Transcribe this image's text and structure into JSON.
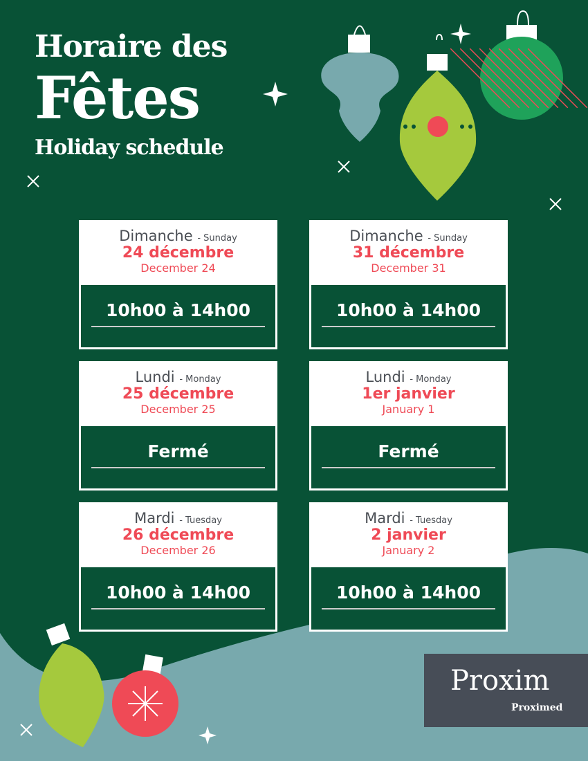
{
  "title": {
    "line1": "Horaire des",
    "line2": "Fêtes",
    "line3": "Holiday schedule"
  },
  "colors": {
    "background": "#085236",
    "accent": "#ef4a56",
    "teal": "#78a9ad",
    "lime": "#a5c93d"
  },
  "cards": [
    {
      "day_fr": "Dimanche",
      "day_en": "- Sunday",
      "date_fr": "24 décembre",
      "date_en": "December 24",
      "hours": "10h00 à 14h00"
    },
    {
      "day_fr": "Dimanche",
      "day_en": "- Sunday",
      "date_fr": "31 décembre",
      "date_en": "December 31",
      "hours": "10h00 à 14h00"
    },
    {
      "day_fr": "Lundi",
      "day_en": "- Monday",
      "date_fr": "25 décembre",
      "date_en": "December 25",
      "hours": "Fermé"
    },
    {
      "day_fr": "Lundi",
      "day_en": "- Monday",
      "date_fr": "1er janvier",
      "date_en": "January 1",
      "hours": "Fermé"
    },
    {
      "day_fr": "Mardi",
      "day_en": "- Tuesday",
      "date_fr": "26 décembre",
      "date_en": "December 26",
      "hours": "10h00 à 14h00"
    },
    {
      "day_fr": "Mardi",
      "day_en": "- Tuesday",
      "date_fr": "2 janvier",
      "date_en": "January 2",
      "hours": "10h00 à 14h00"
    }
  ],
  "logo": {
    "brand": "Proxim",
    "sub": "Proximed"
  }
}
